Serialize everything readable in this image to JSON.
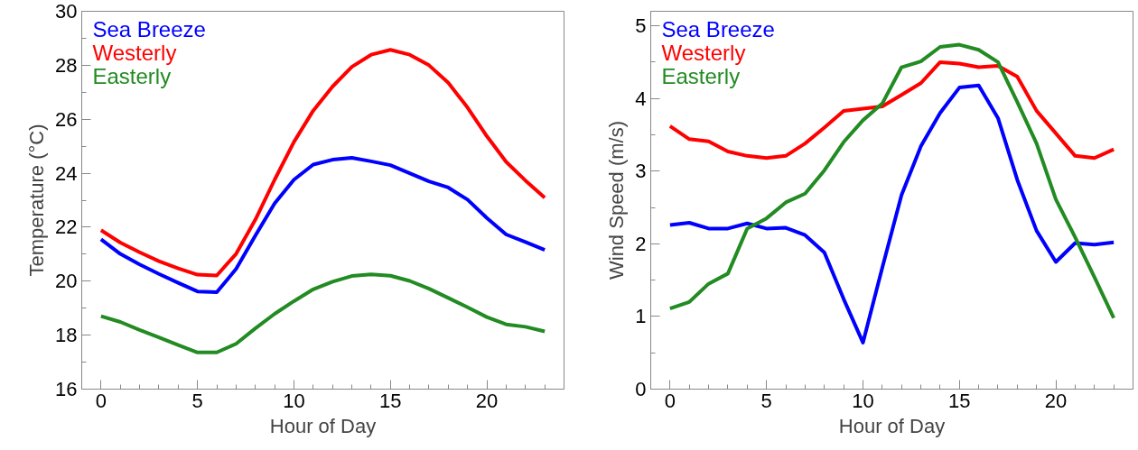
{
  "chart_data": [
    {
      "type": "line",
      "xlabel": "Hour of Day",
      "ylabel": "Temperature (°C)",
      "x": [
        0,
        1,
        2,
        3,
        4,
        5,
        6,
        7,
        8,
        9,
        10,
        11,
        12,
        13,
        14,
        15,
        16,
        17,
        18,
        19,
        20,
        21,
        22,
        23
      ],
      "xlim": [
        -1,
        24
      ],
      "xticks": [
        0,
        5,
        10,
        15,
        20
      ],
      "ylim": [
        16,
        30
      ],
      "yticks": [
        16,
        18,
        20,
        22,
        24,
        26,
        28,
        30
      ],
      "grid": false,
      "legend": "top left",
      "marker": "none",
      "line_style": "solid",
      "series": [
        {
          "name": "Sea Breeze",
          "color": "#0000ff",
          "values": [
            21.55,
            21.01,
            20.62,
            20.27,
            19.94,
            19.62,
            19.59,
            20.45,
            21.69,
            22.88,
            23.76,
            24.32,
            24.5,
            24.57,
            24.44,
            24.3,
            24.0,
            23.7,
            23.47,
            23.02,
            22.34,
            21.73,
            21.45,
            21.16
          ]
        },
        {
          "name": "Westerly",
          "color": "#ff0000",
          "values": [
            21.89,
            21.43,
            21.07,
            20.74,
            20.47,
            20.24,
            20.21,
            21.01,
            22.28,
            23.76,
            25.16,
            26.32,
            27.21,
            27.94,
            28.39,
            28.57,
            28.39,
            28.0,
            27.35,
            26.43,
            25.37,
            24.42,
            23.73,
            23.09
          ]
        },
        {
          "name": "Easterly",
          "color": "#228b22",
          "values": [
            18.7,
            18.49,
            18.19,
            17.92,
            17.63,
            17.36,
            17.36,
            17.68,
            18.25,
            18.79,
            19.26,
            19.7,
            19.98,
            20.19,
            20.25,
            20.2,
            20.01,
            19.72,
            19.38,
            19.03,
            18.67,
            18.4,
            18.31,
            18.14
          ]
        }
      ]
    },
    {
      "type": "line",
      "xlabel": "Hour of Day",
      "ylabel": "Wind Speed (m/s)",
      "x": [
        0,
        1,
        2,
        3,
        4,
        5,
        6,
        7,
        8,
        9,
        10,
        11,
        12,
        13,
        14,
        15,
        16,
        17,
        18,
        19,
        20,
        21,
        22,
        23
      ],
      "xlim": [
        -1,
        24
      ],
      "xticks": [
        0,
        5,
        10,
        15,
        20
      ],
      "ylim": [
        0,
        5.2
      ],
      "yticks": [
        0,
        1,
        2,
        3,
        4,
        5
      ],
      "grid": false,
      "legend": "top left",
      "marker": "none",
      "line_style": "solid",
      "series": [
        {
          "name": "Sea Breeze",
          "color": "#0000ff",
          "values": [
            2.26,
            2.29,
            2.21,
            2.21,
            2.28,
            2.21,
            2.22,
            2.12,
            1.88,
            1.24,
            0.64,
            1.67,
            2.67,
            3.34,
            3.8,
            4.15,
            4.18,
            3.73,
            2.88,
            2.18,
            1.75,
            2.01,
            1.99,
            2.02
          ]
        },
        {
          "name": "Westerly",
          "color": "#ff0000",
          "values": [
            3.62,
            3.44,
            3.41,
            3.27,
            3.21,
            3.18,
            3.21,
            3.38,
            3.6,
            3.83,
            3.86,
            3.89,
            4.05,
            4.21,
            4.5,
            4.48,
            4.43,
            4.45,
            4.3,
            3.83,
            3.52,
            3.21,
            3.18,
            3.3
          ]
        },
        {
          "name": "Easterly",
          "color": "#228b22",
          "values": [
            1.11,
            1.2,
            1.45,
            1.59,
            2.21,
            2.35,
            2.57,
            2.69,
            3.01,
            3.4,
            3.7,
            3.93,
            4.43,
            4.51,
            4.71,
            4.74,
            4.67,
            4.5,
            3.95,
            3.38,
            2.61,
            2.09,
            1.54,
            0.98
          ]
        }
      ]
    }
  ]
}
